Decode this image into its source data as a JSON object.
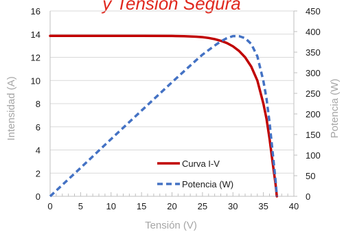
{
  "chart_data": {
    "type": "line",
    "title": "",
    "xlabel": "Tensión (V)",
    "ylabel_left": "Intensidad (A)",
    "ylabel_right": "Potencia (W)",
    "xlim": [
      0,
      40
    ],
    "ylim_left": [
      0,
      16
    ],
    "ylim_right": [
      0,
      450
    ],
    "x_ticks": [
      "0",
      "5",
      "10",
      "15",
      "20",
      "25",
      "30",
      "35",
      "40"
    ],
    "y_left_ticks": [
      "0",
      "2",
      "4",
      "6",
      "8",
      "10",
      "12",
      "14",
      "16"
    ],
    "y_right_ticks": [
      "0",
      "50",
      "100",
      "150",
      "200",
      "250",
      "300",
      "350",
      "400",
      "450"
    ],
    "grid": true,
    "legend_position": "center-right",
    "series": [
      {
        "name": "Curva I-V",
        "axis": "left",
        "color": "#c00000",
        "style": "solid",
        "x": [
          0,
          5,
          10,
          15,
          20,
          22,
          24,
          25,
          26,
          27,
          28,
          29,
          30,
          31,
          32,
          33,
          34,
          35,
          35.5,
          36,
          36.5,
          37,
          37.2
        ],
        "y": [
          13.85,
          13.85,
          13.85,
          13.85,
          13.84,
          13.82,
          13.78,
          13.74,
          13.67,
          13.57,
          13.43,
          13.23,
          12.95,
          12.55,
          12.0,
          11.2,
          10.0,
          8.0,
          6.7,
          5.0,
          3.0,
          1.0,
          0
        ]
      },
      {
        "name": "Potencia (W)",
        "axis": "right",
        "color": "#4472c4",
        "style": "dashed",
        "x": [
          0,
          5,
          10,
          15,
          20,
          22,
          24,
          25,
          26,
          27,
          28,
          29,
          30,
          31,
          32,
          33,
          34,
          35,
          35.5,
          36,
          36.5,
          37,
          37.2
        ],
        "y": [
          0,
          69,
          139,
          208,
          277,
          304,
          331,
          344,
          355,
          366,
          376,
          384,
          389,
          389,
          384,
          370,
          340,
          280,
          238,
          180,
          110,
          37,
          0
        ]
      }
    ]
  },
  "header_fragment": "y Tensión Segura"
}
